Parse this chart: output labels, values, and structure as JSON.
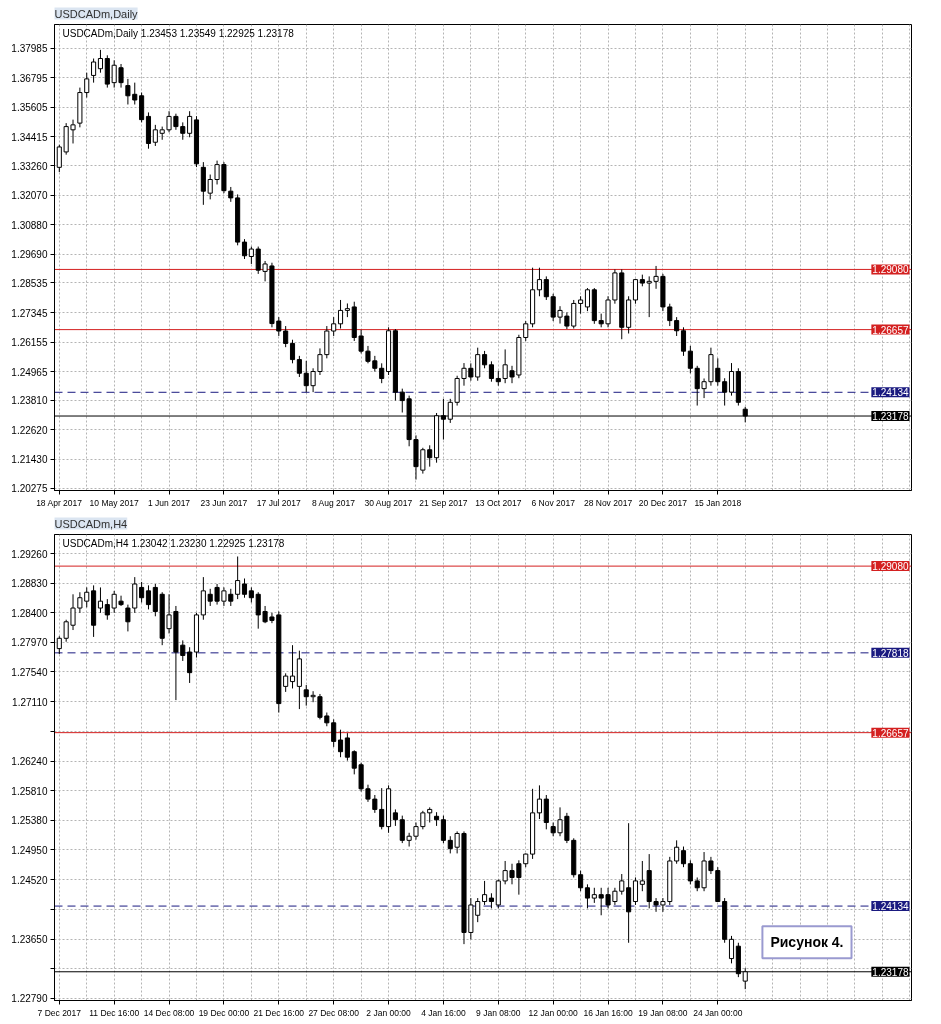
{
  "chart_data": [
    {
      "type": "candlestick",
      "title": "USDCADm,Daily",
      "subtitle": "USDCADm,Daily 1.23453 1.23549 1.22925 1.23178",
      "color": "#000000",
      "grid": true,
      "categories": [
        "18 Apr 2017",
        null,
        null,
        null,
        null,
        null,
        null,
        null,
        "10 May 2017",
        null,
        null,
        null,
        null,
        null,
        null,
        null,
        "1 Jun 2017",
        null,
        null,
        null,
        null,
        null,
        null,
        null,
        "23 Jun 2017",
        null,
        null,
        null,
        null,
        null,
        null,
        null,
        "17 Jul 2017",
        null,
        null,
        null,
        null,
        null,
        null,
        null,
        "8 Aug 2017",
        null,
        null,
        null,
        null,
        null,
        null,
        null,
        "30 Aug 2017",
        null,
        null,
        null,
        null,
        null,
        null,
        null,
        "21 Sep 2017",
        null,
        null,
        null,
        null,
        null,
        null,
        null,
        "13 Oct 2017",
        null,
        null,
        null,
        null,
        null,
        null,
        null,
        "6 Nov 2017",
        null,
        null,
        null,
        null,
        null,
        null,
        null,
        "28 Nov 2017",
        null,
        null,
        null,
        null,
        null,
        null,
        null,
        "20 Dec 2017",
        null,
        null,
        null,
        null,
        null,
        null,
        null,
        "15 Jan 2018",
        null,
        null,
        null,
        null
      ],
      "ohlc": [
        [
          1.3319,
          1.341,
          1.33,
          1.3401
        ],
        [
          1.3381,
          1.3497,
          1.337,
          1.3483
        ],
        [
          1.347,
          1.3511,
          1.3415,
          1.349
        ],
        [
          1.3497,
          1.364,
          1.348,
          1.362
        ],
        [
          1.362,
          1.37,
          1.36,
          1.3675
        ],
        [
          1.3689,
          1.3757,
          1.366,
          1.3743
        ],
        [
          1.3716,
          1.3792,
          1.37,
          1.3757
        ],
        [
          1.3757,
          1.377,
          1.364,
          1.3654
        ],
        [
          1.366,
          1.375,
          1.364,
          1.373
        ],
        [
          1.372,
          1.3735,
          1.364,
          1.366
        ],
        [
          1.3648,
          1.3675,
          1.3572,
          1.3607
        ],
        [
          1.3613,
          1.366,
          1.3572,
          1.359
        ],
        [
          1.3607,
          1.362,
          1.35,
          1.3511
        ],
        [
          1.3524,
          1.354,
          1.3394,
          1.3415
        ],
        [
          1.342,
          1.349,
          1.3405,
          1.347
        ],
        [
          1.3456,
          1.3483,
          1.343,
          1.347
        ],
        [
          1.347,
          1.3545,
          1.346,
          1.3524
        ],
        [
          1.3524,
          1.3535,
          1.347,
          1.3483
        ],
        [
          1.3483,
          1.35,
          1.343,
          1.3456
        ],
        [
          1.3456,
          1.3545,
          1.344,
          1.3524
        ],
        [
          1.351,
          1.3525,
          1.332,
          1.3333
        ],
        [
          1.3319,
          1.334,
          1.3168,
          1.3223
        ],
        [
          1.3215,
          1.329,
          1.319,
          1.327
        ],
        [
          1.327,
          1.3346,
          1.325,
          1.333
        ],
        [
          1.333,
          1.334,
          1.3215,
          1.3225
        ],
        [
          1.3223,
          1.324,
          1.318,
          1.3196
        ],
        [
          1.3196,
          1.321,
          1.3005,
          1.3018
        ],
        [
          1.3018,
          1.303,
          1.295,
          1.2963
        ],
        [
          1.296,
          1.3,
          1.293,
          1.299
        ],
        [
          1.299,
          1.3,
          1.289,
          1.2905
        ],
        [
          1.29,
          1.2942,
          1.286,
          1.293
        ],
        [
          1.2922,
          1.2935,
          1.2675,
          1.269
        ],
        [
          1.27,
          1.2716,
          1.264,
          1.266
        ],
        [
          1.266,
          1.268,
          1.2595,
          1.261
        ],
        [
          1.261,
          1.2625,
          1.253,
          1.2545
        ],
        [
          1.2545,
          1.256,
          1.2475,
          1.249
        ],
        [
          1.249,
          1.254,
          1.2414,
          1.244
        ],
        [
          1.244,
          1.251,
          1.2414,
          1.2497
        ],
        [
          1.2497,
          1.259,
          1.2483,
          1.2565
        ],
        [
          1.2565,
          1.268,
          1.255,
          1.266
        ],
        [
          1.266,
          1.2716,
          1.264,
          1.2689
        ],
        [
          1.2689,
          1.2785,
          1.267,
          1.2743
        ],
        [
          1.2743,
          1.2771,
          1.2716,
          1.275
        ],
        [
          1.2757,
          1.2778,
          1.262,
          1.2634
        ],
        [
          1.264,
          1.2665,
          1.257,
          1.2579
        ],
        [
          1.2579,
          1.26,
          1.253,
          1.2538
        ],
        [
          1.254,
          1.256,
          1.2497,
          1.251
        ],
        [
          1.251,
          1.253,
          1.245,
          1.2469
        ],
        [
          1.2497,
          1.2675,
          1.2483,
          1.2661
        ],
        [
          1.2661,
          1.2668,
          1.238,
          1.2414
        ],
        [
          1.2414,
          1.2428,
          1.2332,
          1.238
        ],
        [
          1.2387,
          1.24,
          1.2196,
          1.2223
        ],
        [
          1.2223,
          1.224,
          1.2062,
          1.2114
        ],
        [
          1.21,
          1.219,
          1.2086,
          1.2182
        ],
        [
          1.2182,
          1.22,
          1.2114,
          1.215
        ],
        [
          1.215,
          1.233,
          1.213,
          1.2319
        ],
        [
          1.2319,
          1.2387,
          1.2223,
          1.2305
        ],
        [
          1.2305,
          1.2387,
          1.229,
          1.2373
        ],
        [
          1.2373,
          1.248,
          1.236,
          1.2469
        ],
        [
          1.2469,
          1.2531,
          1.244,
          1.251
        ],
        [
          1.251,
          1.253,
          1.246,
          1.2475
        ],
        [
          1.2475,
          1.2593,
          1.246,
          1.2565
        ],
        [
          1.2565,
          1.258,
          1.251,
          1.2524
        ],
        [
          1.2524,
          1.2538,
          1.2456,
          1.2469
        ],
        [
          1.2469,
          1.25,
          1.244,
          1.2456
        ],
        [
          1.2469,
          1.2586,
          1.245,
          1.2524
        ],
        [
          1.25,
          1.252,
          1.245,
          1.2475
        ],
        [
          1.2483,
          1.2645,
          1.247,
          1.2634
        ],
        [
          1.2634,
          1.27,
          1.262,
          1.2689
        ],
        [
          1.2689,
          1.2915,
          1.2675,
          1.2826
        ],
        [
          1.2826,
          1.2915,
          1.28,
          1.2867
        ],
        [
          1.2867,
          1.288,
          1.2785,
          1.2798
        ],
        [
          1.2798,
          1.281,
          1.27,
          1.2716
        ],
        [
          1.2716,
          1.276,
          1.269,
          1.2743
        ],
        [
          1.272,
          1.2735,
          1.2668,
          1.268
        ],
        [
          1.268,
          1.2785,
          1.267,
          1.2771
        ],
        [
          1.2771,
          1.28,
          1.273,
          1.2785
        ],
        [
          1.2757,
          1.2833,
          1.274,
          1.2826
        ],
        [
          1.2826,
          1.2833,
          1.2689,
          1.2702
        ],
        [
          1.2702,
          1.273,
          1.2675,
          1.2689
        ],
        [
          1.2689,
          1.28,
          1.2675,
          1.2785
        ],
        [
          1.2785,
          1.2908,
          1.277,
          1.2894
        ],
        [
          1.2894,
          1.2908,
          1.2627,
          1.2675
        ],
        [
          1.2675,
          1.28,
          1.265,
          1.2785
        ],
        [
          1.2785,
          1.287,
          1.277,
          1.2867
        ],
        [
          1.2867,
          1.2887,
          1.284,
          1.2853
        ],
        [
          1.2853,
          1.288,
          1.2716,
          1.286
        ],
        [
          1.286,
          1.2922,
          1.283,
          1.288
        ],
        [
          1.288,
          1.289,
          1.274,
          1.2757
        ],
        [
          1.2757,
          1.277,
          1.268,
          1.2702
        ],
        [
          1.2702,
          1.2716,
          1.264,
          1.2661
        ],
        [
          1.2661,
          1.2675,
          1.256,
          1.2579
        ],
        [
          1.2579,
          1.26,
          1.249,
          1.251
        ],
        [
          1.251,
          1.252,
          1.236,
          1.2428
        ],
        [
          1.2428,
          1.2469,
          1.239,
          1.2456
        ],
        [
          1.2456,
          1.2593,
          1.244,
          1.2565
        ],
        [
          1.251,
          1.255,
          1.244,
          1.2456
        ],
        [
          1.2456,
          1.247,
          1.236,
          1.2414
        ],
        [
          1.2414,
          1.2531,
          1.24,
          1.2497
        ],
        [
          1.2497,
          1.251,
          1.236,
          1.2373
        ],
        [
          1.23453,
          1.23549,
          1.22925,
          1.23178
        ]
      ],
      "ylim": [
        1.2018,
        1.3894
      ],
      "yticks": [
        1.20275,
        {
          "value": 1.2143,
          "label": "1.21430"
        },
        {
          "value": 1.2262,
          "label": "1.22620"
        },
        {
          "value": 1.2381,
          "label": "1.23810"
        },
        1.24965,
        1.26155,
        1.27345,
        1.28535,
        {
          "value": 1.2969,
          "label": "1.29690"
        },
        {
          "value": 1.3088,
          "label": "1.30880"
        },
        {
          "value": 1.3207,
          "label": "1.32070"
        },
        {
          "value": 1.3326,
          "label": "1.33260"
        },
        1.34415,
        1.35605,
        1.36795,
        1.37985
      ],
      "ref_lines": [
        {
          "axis": "y",
          "value": 1.2908,
          "label": "1.29080",
          "color": "#d42020",
          "line_style": "solid"
        },
        {
          "axis": "y",
          "value": 1.26657,
          "label": "1.26657",
          "color": "#d42020",
          "line_style": "solid"
        },
        {
          "axis": "y",
          "value": 1.24134,
          "label": "1.24134",
          "color": "#1a1a80",
          "line_style": "dashed"
        },
        {
          "axis": "y",
          "value": 1.23178,
          "label": "1.23178",
          "color": "#000000",
          "line_style": "solid"
        }
      ]
    },
    {
      "type": "candlestick",
      "title": "USDCADm,H4",
      "subtitle": "USDCADm,H4 1.23042 1.23230 1.22925 1.23178",
      "color": "#000000",
      "grid": true,
      "categories": [
        "7 Dec 2017",
        null,
        null,
        null,
        null,
        null,
        null,
        null,
        "11 Dec 16:00",
        null,
        null,
        null,
        null,
        null,
        null,
        null,
        "14 Dec 08:00",
        null,
        null,
        null,
        null,
        null,
        null,
        null,
        "19 Dec 00:00",
        null,
        null,
        null,
        null,
        null,
        null,
        null,
        "21 Dec 16:00",
        null,
        null,
        null,
        null,
        null,
        null,
        null,
        "27 Dec 08:00",
        null,
        null,
        null,
        null,
        null,
        null,
        null,
        "2 Jan 00:00",
        null,
        null,
        null,
        null,
        null,
        null,
        null,
        "4 Jan 16:00",
        null,
        null,
        null,
        null,
        null,
        null,
        null,
        "9 Jan 08:00",
        null,
        null,
        null,
        null,
        null,
        null,
        null,
        "12 Jan 00:00",
        null,
        null,
        null,
        null,
        null,
        null,
        null,
        "16 Jan 16:00",
        null,
        null,
        null,
        null,
        null,
        null,
        null,
        "19 Jan 08:00",
        null,
        null,
        null,
        null,
        null,
        null,
        null,
        "24 Jan 00:00",
        null,
        null,
        null,
        null
      ],
      "ohlc": [
        [
          1.2788,
          1.2806,
          1.278,
          1.2803
        ],
        [
          1.2803,
          1.283,
          1.2798,
          1.2827
        ],
        [
          1.2822,
          1.2867,
          1.2815,
          1.2847
        ],
        [
          1.2847,
          1.287,
          1.284,
          1.2862
        ],
        [
          1.2857,
          1.2877,
          1.2848,
          1.287
        ],
        [
          1.2872,
          1.288,
          1.2805,
          1.2822
        ],
        [
          1.2847,
          1.2877,
          1.284,
          1.2857
        ],
        [
          1.2852,
          1.286,
          1.283,
          1.2837
        ],
        [
          1.2847,
          1.2872,
          1.284,
          1.2867
        ],
        [
          1.2857,
          1.2865,
          1.285,
          1.2852
        ],
        [
          1.2847,
          1.2852,
          1.2813,
          1.2827
        ],
        [
          1.2847,
          1.2892,
          1.284,
          1.2882
        ],
        [
          1.2877,
          1.2885,
          1.2855,
          1.2862
        ],
        [
          1.2872,
          1.288,
          1.2845,
          1.2852
        ],
        [
          1.2877,
          1.2882,
          1.2835,
          1.2842
        ],
        [
          1.2867,
          1.287,
          1.2793,
          1.2803
        ],
        [
          1.2817,
          1.2867,
          1.281,
          1.2837
        ],
        [
          1.2842,
          1.285,
          1.2713,
          1.2783
        ],
        [
          1.2793,
          1.28,
          1.277,
          1.2778
        ],
        [
          1.2783,
          1.279,
          1.2738,
          1.2753
        ],
        [
          1.2783,
          1.284,
          1.2775,
          1.2837
        ],
        [
          1.2837,
          1.2892,
          1.283,
          1.2872
        ],
        [
          1.2867,
          1.2875,
          1.285,
          1.2857
        ],
        [
          1.2877,
          1.2882,
          1.2852,
          1.2857
        ],
        [
          1.2857,
          1.2877,
          1.285,
          1.2872
        ],
        [
          1.2867,
          1.2875,
          1.285,
          1.2857
        ],
        [
          1.2867,
          1.2922,
          1.286,
          1.2887
        ],
        [
          1.2882,
          1.289,
          1.2862,
          1.2867
        ],
        [
          1.2872,
          1.2877,
          1.2855,
          1.2862
        ],
        [
          1.2867,
          1.287,
          1.2817,
          1.2837
        ],
        [
          1.2842,
          1.285,
          1.2825,
          1.2827
        ],
        [
          1.2834,
          1.284,
          1.2825,
          1.2829
        ],
        [
          1.2837,
          1.2842,
          1.2695,
          1.2708
        ],
        [
          1.2733,
          1.2752,
          1.2725,
          1.2748
        ],
        [
          1.274,
          1.2793,
          1.273,
          1.2748
        ],
        [
          1.2733,
          1.2785,
          1.27,
          1.2773
        ],
        [
          1.2728,
          1.2735,
          1.2705,
          1.2718
        ],
        [
          1.2718,
          1.2726,
          1.271,
          1.272
        ],
        [
          1.2718,
          1.2722,
          1.2685,
          1.2688
        ],
        [
          1.269,
          1.2695,
          1.2675,
          1.268
        ],
        [
          1.268,
          1.2685,
          1.2645,
          1.2653
        ],
        [
          1.2655,
          1.267,
          1.263,
          1.2638
        ],
        [
          1.2658,
          1.2665,
          1.2625,
          1.263
        ],
        [
          1.2638,
          1.264,
          1.2605,
          1.2614
        ],
        [
          1.2619,
          1.2622,
          1.258,
          1.2584
        ],
        [
          1.2584,
          1.259,
          1.2565,
          1.2569
        ],
        [
          1.2569,
          1.2575,
          1.2549,
          1.2554
        ],
        [
          1.2554,
          1.2585,
          1.2525,
          1.2529
        ],
        [
          1.2529,
          1.2589,
          1.252,
          1.2584
        ],
        [
          1.2549,
          1.2554,
          1.253,
          1.2539
        ],
        [
          1.2539,
          1.2545,
          1.2505,
          1.2509
        ],
        [
          1.2509,
          1.252,
          1.25,
          1.2515
        ],
        [
          1.2515,
          1.2535,
          1.251,
          1.2529
        ],
        [
          1.2529,
          1.2552,
          1.2525,
          1.2549
        ],
        [
          1.2549,
          1.2557,
          1.2535,
          1.2554
        ],
        [
          1.2544,
          1.255,
          1.253,
          1.2539
        ],
        [
          1.2539,
          1.2545,
          1.2505,
          1.2509
        ],
        [
          1.2509,
          1.2515,
          1.249,
          1.2497
        ],
        [
          1.2499,
          1.2522,
          1.249,
          1.2519
        ],
        [
          1.2519,
          1.2522,
          1.2358,
          1.2375
        ],
        [
          1.2375,
          1.2425,
          1.2365,
          1.2415
        ],
        [
          1.24,
          1.2425,
          1.239,
          1.242
        ],
        [
          1.242,
          1.245,
          1.2415,
          1.243
        ],
        [
          1.2425,
          1.2432,
          1.241,
          1.242
        ],
        [
          1.2415,
          1.2452,
          1.241,
          1.245
        ],
        [
          1.245,
          1.2479,
          1.2445,
          1.2465
        ],
        [
          1.2465,
          1.2475,
          1.2445,
          1.2455
        ],
        [
          1.2475,
          1.248,
          1.243,
          1.2455
        ],
        [
          1.2475,
          1.249,
          1.247,
          1.2489
        ],
        [
          1.2489,
          1.2584,
          1.2482,
          1.2549
        ],
        [
          1.2549,
          1.2589,
          1.254,
          1.2569
        ],
        [
          1.2569,
          1.2575,
          1.2525,
          1.2535
        ],
        [
          1.2529,
          1.2535,
          1.2515,
          1.252
        ],
        [
          1.252,
          1.2557,
          1.2515,
          1.2539
        ],
        [
          1.2544,
          1.2549,
          1.2505,
          1.2509
        ],
        [
          1.2509,
          1.2512,
          1.2455,
          1.2459
        ],
        [
          1.2459,
          1.2465,
          1.2435,
          1.244
        ],
        [
          1.244,
          1.2445,
          1.241,
          1.2425
        ],
        [
          1.2425,
          1.244,
          1.2418,
          1.243
        ],
        [
          1.243,
          1.244,
          1.24,
          1.2425
        ],
        [
          1.243,
          1.244,
          1.241,
          1.2415
        ],
        [
          1.242,
          1.244,
          1.2415,
          1.2435
        ],
        [
          1.2435,
          1.246,
          1.243,
          1.245
        ],
        [
          1.244,
          1.2534,
          1.236,
          1.2405
        ],
        [
          1.242,
          1.2455,
          1.2415,
          1.245
        ],
        [
          1.2445,
          1.2479,
          1.2435,
          1.245
        ],
        [
          1.2465,
          1.2489,
          1.241,
          1.242
        ],
        [
          1.242,
          1.2425,
          1.2405,
          1.2415
        ],
        [
          1.2415,
          1.2425,
          1.2405,
          1.242
        ],
        [
          1.242,
          1.2485,
          1.2415,
          1.2479
        ],
        [
          1.2479,
          1.2509,
          1.2475,
          1.2499
        ],
        [
          1.2494,
          1.25,
          1.247,
          1.2475
        ],
        [
          1.2475,
          1.248,
          1.2445,
          1.245
        ],
        [
          1.245,
          1.2455,
          1.2435,
          1.244
        ],
        [
          1.244,
          1.2492,
          1.2435,
          1.2479
        ],
        [
          1.2479,
          1.2485,
          1.246,
          1.2465
        ],
        [
          1.2465,
          1.247,
          1.242,
          1.242
        ],
        [
          1.242,
          1.2425,
          1.236,
          1.2365
        ],
        [
          1.2337,
          1.237,
          1.233,
          1.2365
        ],
        [
          1.2355,
          1.236,
          1.231,
          1.2315
        ],
        [
          1.23042,
          1.2323,
          1.22925,
          1.23178
        ]
      ],
      "ylim": [
        1.2276,
        1.2954
      ],
      "yticks": [
        {
          "value": 1.2279,
          "label": "1.22790"
        },
        {
          "value": 1.2322,
          "label": null
        },
        {
          "value": 1.2365,
          "label": "1.23650"
        },
        {
          "value": 1.2409,
          "label": null
        },
        {
          "value": 1.2452,
          "label": "1.24520"
        },
        {
          "value": 1.2495,
          "label": "1.24950"
        },
        {
          "value": 1.2538,
          "label": "1.25380"
        },
        {
          "value": 1.2581,
          "label": "1.25810"
        },
        {
          "value": 1.2624,
          "label": "1.26240"
        },
        {
          "value": 1.2668,
          "label": null
        },
        {
          "value": 1.2711,
          "label": "1.27110"
        },
        {
          "value": 1.2754,
          "label": "1.27540"
        },
        {
          "value": 1.2797,
          "label": "1.27970"
        },
        {
          "value": 1.284,
          "label": "1.28400"
        },
        {
          "value": 1.2883,
          "label": "1.28830"
        },
        {
          "value": 1.2926,
          "label": "1.29260"
        }
      ],
      "ref_lines": [
        {
          "axis": "y",
          "value": 1.2908,
          "label": "1.29080",
          "color": "#d42020",
          "line_style": "solid"
        },
        {
          "axis": "y",
          "value": 1.27818,
          "label": "1.27818",
          "color": "#1a1a80",
          "line_style": "dashed"
        },
        {
          "axis": "y",
          "value": 1.26657,
          "label": "1.26657",
          "color": "#d42020",
          "line_style": "solid"
        },
        {
          "axis": "y",
          "value": 1.24134,
          "label": "1.24134",
          "color": "#1a1a80",
          "line_style": "dashed"
        },
        {
          "axis": "y",
          "value": 1.23178,
          "label": "1.23178",
          "color": "#000000",
          "line_style": "solid"
        }
      ],
      "annotations": [
        "Рисунок 4."
      ]
    }
  ]
}
